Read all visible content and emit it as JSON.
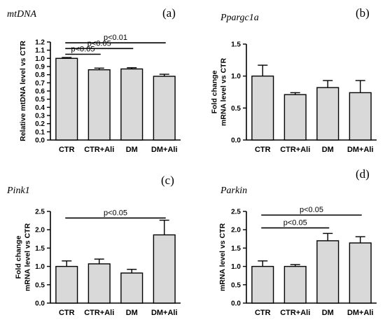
{
  "chart_data": [
    {
      "type": "bar",
      "panel": "(a)",
      "gene": "mtDNA",
      "ylabel": [
        "Relative mtDNA level vs CTR"
      ],
      "ylim": [
        0,
        1.2
      ],
      "yticks": [
        "0.0",
        "0.1",
        "0.2",
        "0.3",
        "0.4",
        "0.5",
        "0.6",
        "0.7",
        "0.8",
        "0.9",
        "1.0",
        "1.1",
        "1.2"
      ],
      "categories": [
        "CTR",
        "CTR+Ali",
        "DM",
        "DM+Ali"
      ],
      "values": [
        1.0,
        0.86,
        0.87,
        0.78
      ],
      "errors": [
        0.01,
        0.02,
        0.015,
        0.025
      ],
      "significance": [
        {
          "from": 0,
          "to": 1,
          "y": 1.05,
          "label": "p<0.05"
        },
        {
          "from": 0,
          "to": 2,
          "y": 1.12,
          "label": "p<0.05"
        },
        {
          "from": 0,
          "to": 3,
          "y": 1.19,
          "label": "p<0.01"
        }
      ]
    },
    {
      "type": "bar",
      "panel": "(b)",
      "gene": "Ppargc1a",
      "ylabel": [
        "Fold change",
        "mRNA level vs CTR"
      ],
      "ylim": [
        0,
        1.5
      ],
      "yticks": [
        "0.0",
        "0.5",
        "1.0",
        "1.5"
      ],
      "categories": [
        "CTR",
        "CTR+Ali",
        "DM",
        "DM+Ali"
      ],
      "values": [
        1.0,
        0.71,
        0.82,
        0.74
      ],
      "errors": [
        0.17,
        0.03,
        0.11,
        0.19
      ],
      "significance": []
    },
    {
      "type": "bar",
      "panel": "(c)",
      "gene": "Pink1",
      "ylabel": [
        "Fold change",
        "mRNA level vs CTR"
      ],
      "ylim": [
        0,
        2.5
      ],
      "yticks": [
        "0.0",
        "0.5",
        "1.0",
        "1.5",
        "2.0",
        "2.5"
      ],
      "categories": [
        "CTR",
        "CTR+Ali",
        "DM",
        "DM+Ali"
      ],
      "values": [
        1.0,
        1.07,
        0.82,
        1.86
      ],
      "errors": [
        0.15,
        0.13,
        0.1,
        0.4
      ],
      "significance": [
        {
          "from": 0,
          "to": 3,
          "y": 2.32,
          "label": "p<0.05"
        }
      ]
    },
    {
      "type": "bar",
      "panel": "(d)",
      "gene": "Parkin",
      "ylabel": [
        "mRNA level vs CTR"
      ],
      "ylim": [
        0,
        2.5
      ],
      "yticks": [
        "0.0",
        "0.5",
        "1.0",
        "1.5",
        "2.0",
        "2.5"
      ],
      "categories": [
        "CTR",
        "CTR+Ali",
        "DM",
        "DM+Ali"
      ],
      "values": [
        1.0,
        1.0,
        1.7,
        1.64
      ],
      "errors": [
        0.15,
        0.05,
        0.2,
        0.17
      ],
      "significance": [
        {
          "from": 0,
          "to": 2,
          "y": 2.05,
          "label": "p<0.05"
        },
        {
          "from": 0,
          "to": 3,
          "y": 2.4,
          "label": "p<0.05"
        }
      ]
    }
  ]
}
